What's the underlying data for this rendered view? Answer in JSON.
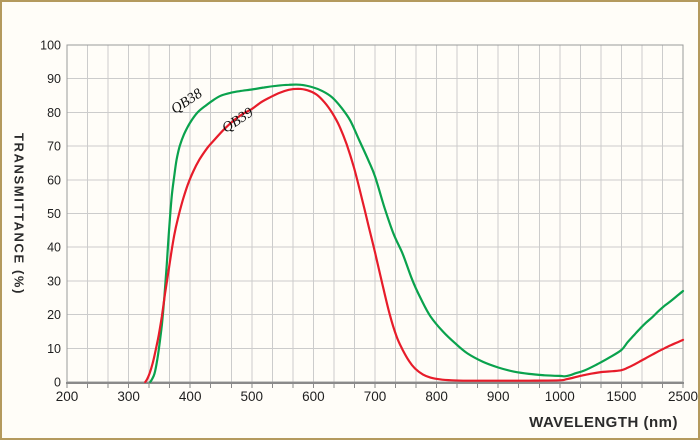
{
  "frame": {
    "border_color": "#b49a5e",
    "background_color": "#fffdf8"
  },
  "chart_data": {
    "type": "line",
    "title": "",
    "xlabel": "WAVELENGTH (nm)",
    "ylabel": "TRANSMITTANCE (%)",
    "x_ticks_major": [
      200,
      300,
      400,
      500,
      600,
      700,
      800,
      900,
      1000,
      1500,
      2500
    ],
    "x_minor_divisions_per_segment": 3,
    "y_ticks": [
      0,
      10,
      20,
      30,
      40,
      50,
      60,
      70,
      80,
      90,
      100
    ],
    "ylim": [
      0,
      100
    ],
    "grid": "on",
    "grid_color": "#cccccc",
    "axis_color": "#8a8a8a",
    "border_color": "#9a9a9a",
    "tick_label_color": "#1f1f1f",
    "legend_position": "inline-curve-labels",
    "series": [
      {
        "name": "QB38",
        "color": "#0aa24d",
        "points": [
          [
            335,
            0
          ],
          [
            338,
            0.8
          ],
          [
            342,
            2.5
          ],
          [
            346,
            6
          ],
          [
            350,
            11
          ],
          [
            354,
            17
          ],
          [
            358,
            25
          ],
          [
            362,
            35
          ],
          [
            366,
            46
          ],
          [
            370,
            55
          ],
          [
            374,
            61
          ],
          [
            378,
            66
          ],
          [
            383,
            70
          ],
          [
            390,
            73.5
          ],
          [
            400,
            77
          ],
          [
            412,
            80
          ],
          [
            425,
            82
          ],
          [
            438,
            83.7
          ],
          [
            450,
            85
          ],
          [
            465,
            85.8
          ],
          [
            480,
            86.3
          ],
          [
            500,
            86.8
          ],
          [
            520,
            87.4
          ],
          [
            540,
            87.9
          ],
          [
            560,
            88.2
          ],
          [
            580,
            88.2
          ],
          [
            600,
            87.4
          ],
          [
            615,
            86.3
          ],
          [
            630,
            84.5
          ],
          [
            645,
            81.5
          ],
          [
            660,
            77.5
          ],
          [
            675,
            71.5
          ],
          [
            690,
            65.5
          ],
          [
            700,
            61
          ],
          [
            715,
            52
          ],
          [
            730,
            44
          ],
          [
            745,
            38
          ],
          [
            760,
            30.5
          ],
          [
            775,
            24.5
          ],
          [
            790,
            19.5
          ],
          [
            810,
            15
          ],
          [
            830,
            11.5
          ],
          [
            850,
            8.5
          ],
          [
            875,
            6
          ],
          [
            900,
            4.3
          ],
          [
            925,
            3.1
          ],
          [
            950,
            2.4
          ],
          [
            975,
            2
          ],
          [
            1000,
            1.8
          ],
          [
            1040,
            1.7
          ],
          [
            1080,
            2
          ],
          [
            1130,
            2.6
          ],
          [
            1200,
            3.4
          ],
          [
            1300,
            5.2
          ],
          [
            1400,
            7.2
          ],
          [
            1500,
            9.5
          ],
          [
            1600,
            11.8
          ],
          [
            1700,
            13.8
          ],
          [
            1800,
            15.8
          ],
          [
            1900,
            17.6
          ],
          [
            2000,
            19.2
          ],
          [
            2100,
            21
          ],
          [
            2200,
            22.6
          ],
          [
            2300,
            24
          ],
          [
            2400,
            25.5
          ],
          [
            2500,
            27
          ]
        ]
      },
      {
        "name": "QB39",
        "color": "#e71c2a",
        "points": [
          [
            327,
            0
          ],
          [
            330,
            0.8
          ],
          [
            334,
            2.5
          ],
          [
            339,
            5.5
          ],
          [
            344,
            9.5
          ],
          [
            349,
            14
          ],
          [
            354,
            19.5
          ],
          [
            359,
            26
          ],
          [
            364,
            32
          ],
          [
            369,
            38
          ],
          [
            374,
            43.5
          ],
          [
            380,
            48.5
          ],
          [
            388,
            54
          ],
          [
            396,
            58.5
          ],
          [
            405,
            62.5
          ],
          [
            415,
            66
          ],
          [
            428,
            69.5
          ],
          [
            440,
            72
          ],
          [
            455,
            75
          ],
          [
            470,
            77.5
          ],
          [
            485,
            79.5
          ],
          [
            500,
            81
          ],
          [
            515,
            83
          ],
          [
            530,
            84.5
          ],
          [
            545,
            85.8
          ],
          [
            560,
            86.7
          ],
          [
            575,
            87
          ],
          [
            590,
            86.6
          ],
          [
            605,
            85.3
          ],
          [
            618,
            83
          ],
          [
            630,
            80
          ],
          [
            642,
            76
          ],
          [
            654,
            70.5
          ],
          [
            666,
            63.5
          ],
          [
            678,
            55
          ],
          [
            690,
            46
          ],
          [
            700,
            38.5
          ],
          [
            712,
            29
          ],
          [
            724,
            20
          ],
          [
            735,
            13.5
          ],
          [
            745,
            9.5
          ],
          [
            755,
            6.3
          ],
          [
            765,
            4
          ],
          [
            778,
            2.2
          ],
          [
            790,
            1.3
          ],
          [
            805,
            0.8
          ],
          [
            825,
            0.5
          ],
          [
            850,
            0.4
          ],
          [
            900,
            0.4
          ],
          [
            950,
            0.4
          ],
          [
            1000,
            0.5
          ],
          [
            1050,
            0.8
          ],
          [
            1100,
            1.2
          ],
          [
            1180,
            1.9
          ],
          [
            1260,
            2.5
          ],
          [
            1350,
            3
          ],
          [
            1430,
            3.2
          ],
          [
            1500,
            3.5
          ],
          [
            1600,
            4.2
          ],
          [
            1700,
            5.1
          ],
          [
            1800,
            6.1
          ],
          [
            1900,
            7.1
          ],
          [
            2000,
            8.1
          ],
          [
            2100,
            9.1
          ],
          [
            2200,
            10
          ],
          [
            2300,
            10.9
          ],
          [
            2400,
            11.7
          ],
          [
            2500,
            12.5
          ]
        ]
      }
    ],
    "annotations": [
      {
        "text": "QB38",
        "nm": 395,
        "pct": 83,
        "angle": -33
      },
      {
        "text": "QB39",
        "nm": 478,
        "pct": 77.5,
        "angle": -33
      }
    ]
  }
}
